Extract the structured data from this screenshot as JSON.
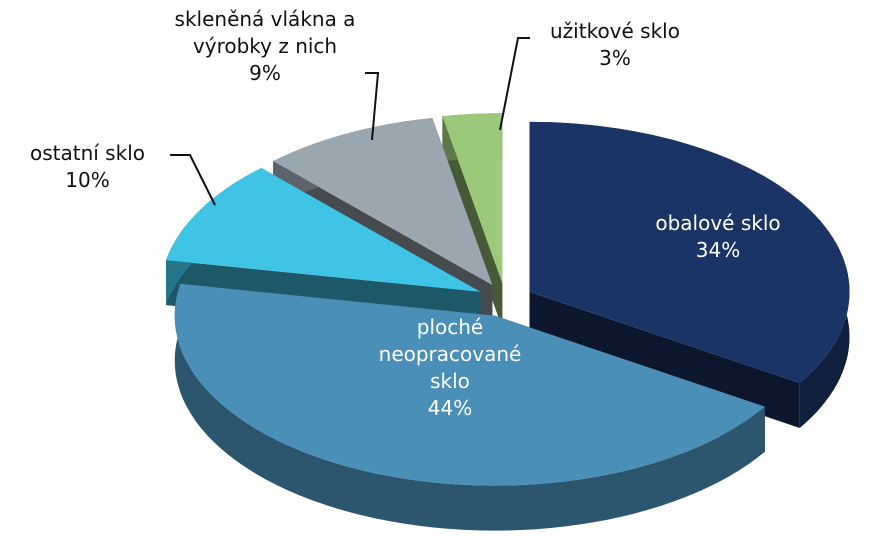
{
  "chart_data": {
    "type": "pie",
    "categories": [
      "obalové sklo",
      "ploché neopracované sklo",
      "ostatní sklo",
      "skleněná vlákna a výrobky z nich",
      "užitkové sklo"
    ],
    "values": [
      34,
      44,
      10,
      9,
      3
    ],
    "value_labels": [
      "34%",
      "44%",
      "10%",
      "9%",
      "3%"
    ],
    "colors": [
      "#1b3466",
      "#4a8fb8",
      "#40c4e6",
      "#9aa6b0",
      "#9cc87a"
    ]
  }
}
